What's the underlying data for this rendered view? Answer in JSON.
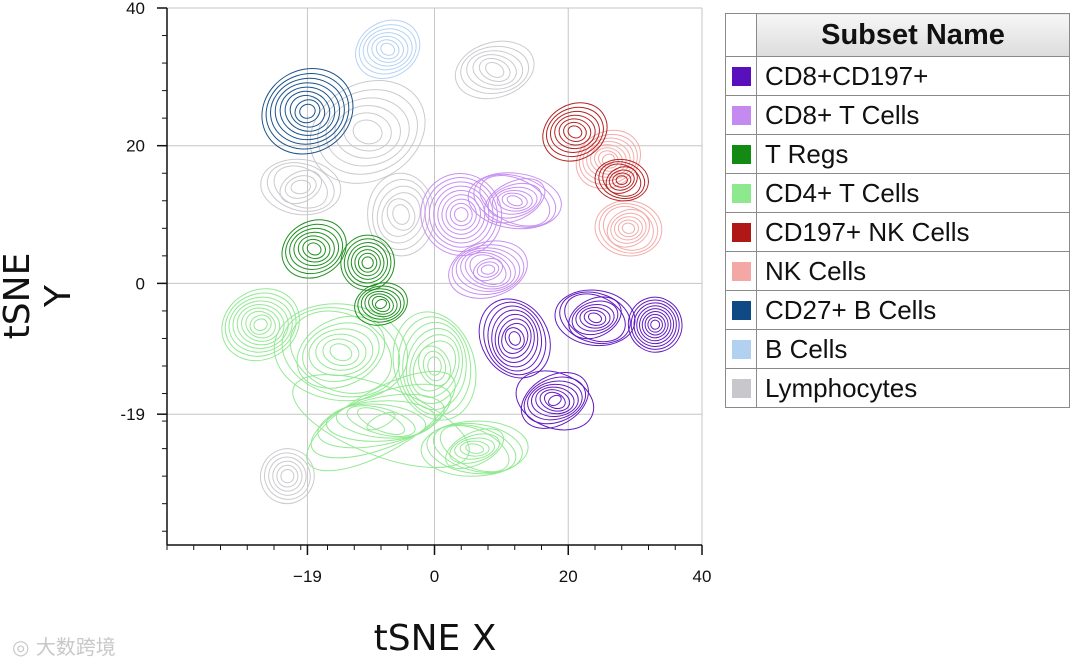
{
  "chart_data": {
    "type": "contour",
    "xlabel": "tSNE X",
    "ylabel": "tSNE Y",
    "xlim": [
      -40,
      40
    ],
    "ylim": [
      -38,
      40
    ],
    "xticks": [
      {
        "value": -19,
        "label": "−19"
      },
      {
        "value": 0,
        "label": "0"
      },
      {
        "value": 20,
        "label": "20"
      },
      {
        "value": 40,
        "label": "40"
      }
    ],
    "yticks": [
      {
        "value": -19,
        "label": "-19"
      },
      {
        "value": 0,
        "label": "0"
      },
      {
        "value": 20,
        "label": "20"
      },
      {
        "value": 40,
        "label": "40"
      }
    ],
    "grid": true,
    "legend_header": "Subset Name",
    "series": [
      {
        "name": "Lymphocytes",
        "color": "#c8c8cc",
        "lines": 6,
        "centers": [
          [
            -10,
            22,
            9,
            7
          ],
          [
            -20,
            14,
            6,
            4
          ],
          [
            9,
            31,
            6,
            4
          ],
          [
            -22,
            -28,
            4,
            4
          ],
          [
            -5,
            10,
            5,
            6
          ]
        ]
      },
      {
        "name": "CD4+ T Cells",
        "color": "#8ee88e",
        "lines": 9,
        "centers": [
          [
            -26,
            -6,
            6,
            5
          ],
          [
            -14,
            -10,
            10,
            7
          ],
          [
            0,
            -12,
            6,
            8
          ],
          [
            -8,
            -20,
            14,
            5
          ],
          [
            6,
            -24,
            8,
            4
          ]
        ]
      },
      {
        "name": "B Cells",
        "color": "#b2d0f0",
        "lines": 7,
        "centers": [
          [
            -7,
            34,
            5,
            4
          ]
        ]
      },
      {
        "name": "CD8+ T Cells",
        "color": "#c48af0",
        "lines": 9,
        "centers": [
          [
            4,
            10,
            6,
            6
          ],
          [
            12,
            12,
            7,
            4
          ],
          [
            8,
            2,
            6,
            4
          ]
        ]
      },
      {
        "name": "NK Cells",
        "color": "#f3a8a6",
        "lines": 8,
        "centers": [
          [
            26,
            18,
            5,
            4
          ],
          [
            29,
            8,
            5,
            4
          ]
        ]
      },
      {
        "name": "CD27+ B Cells",
        "color": "#0f4a84",
        "lines": 9,
        "centers": [
          [
            -19,
            25,
            7,
            6
          ]
        ]
      },
      {
        "name": "T Regs",
        "color": "#138a13",
        "lines": 7,
        "centers": [
          [
            -18,
            5,
            5,
            4
          ],
          [
            -10,
            3,
            4,
            4
          ],
          [
            -8,
            -3,
            4,
            3
          ]
        ]
      },
      {
        "name": "CD197+ NK Cells",
        "color": "#b01818",
        "lines": 7,
        "centers": [
          [
            21,
            22,
            5,
            4
          ],
          [
            28,
            15,
            4,
            3
          ]
        ]
      },
      {
        "name": "CD8+CD197+",
        "color": "#5a0fbf",
        "lines": 9,
        "centers": [
          [
            12,
            -8,
            5,
            6
          ],
          [
            24,
            -5,
            6,
            4
          ],
          [
            33,
            -6,
            4,
            4
          ],
          [
            18,
            -17,
            6,
            4
          ]
        ]
      }
    ],
    "legend_order": [
      "CD8+CD197+",
      "CD8+ T Cells",
      "T Regs",
      "CD4+ T Cells",
      "CD197+ NK Cells",
      "NK Cells",
      "CD27+ B Cells",
      "B Cells",
      "Lymphocytes"
    ]
  },
  "watermark": "大数跨境"
}
